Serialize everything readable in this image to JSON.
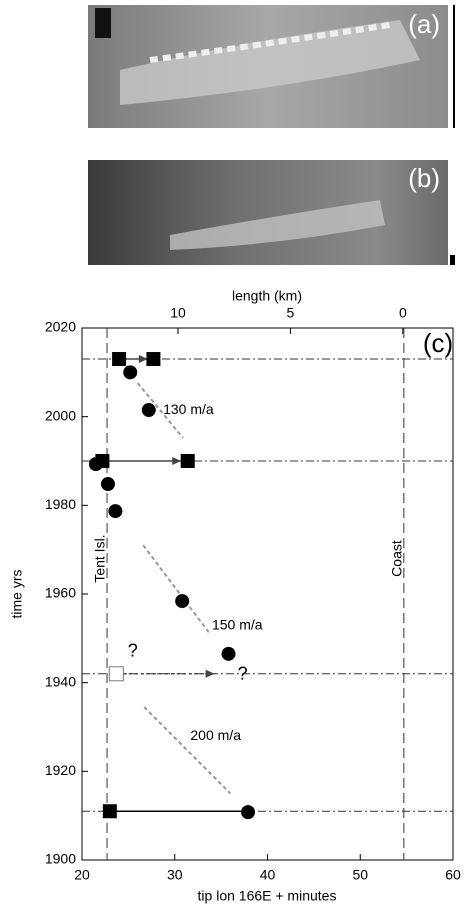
{
  "panels": [
    {
      "label": "(a)"
    },
    {
      "label": "(b)"
    }
  ],
  "chart_data": {
    "type": "scatter",
    "panel_label": "(c)",
    "xlabel": "tip lon 166E + minutes",
    "ylabel": "time yrs",
    "x2label": "length (km)",
    "xlim": [
      20,
      60
    ],
    "ylim": [
      1900,
      2020
    ],
    "x2lim": [
      14.27,
      -2.23
    ],
    "xticks": [
      20,
      30,
      40,
      50,
      60
    ],
    "yticks": [
      1900,
      1920,
      1940,
      1960,
      1980,
      2000,
      2020
    ],
    "x2ticks": [
      10,
      5,
      0
    ],
    "series": [
      {
        "marker": "square",
        "color": "#000000",
        "x": [
          24.0,
          27.7,
          22.2,
          31.4,
          23.0
        ],
        "y": [
          2013,
          2013,
          1990,
          1990,
          1911
        ]
      },
      {
        "marker": "circle",
        "color": "#000000",
        "x": [
          25.2,
          27.2,
          21.5,
          22.8,
          23.6,
          30.8,
          35.8,
          37.9
        ],
        "y": [
          2010,
          2001.5,
          1989.3,
          1984.8,
          1978.7,
          1958.4,
          1946.5,
          1910.8
        ]
      },
      {
        "marker": "hollow-square",
        "color": "#777777",
        "x": [
          23.7
        ],
        "y": [
          1942
        ]
      }
    ],
    "arrows": [
      {
        "style": "solid",
        "color": "#444444",
        "x": [
          24.6,
          27.1
        ],
        "y": [
          2013,
          2013
        ]
      },
      {
        "style": "solid",
        "color": "#444444",
        "x": [
          22.8,
          30.7
        ],
        "y": [
          1990,
          1990
        ]
      },
      {
        "style": "dotted",
        "color": "#444444",
        "x": [
          24.4,
          34.3
        ],
        "y": [
          1942,
          1942
        ]
      },
      {
        "style": "plain",
        "color": "#000000",
        "x": [
          23.6,
          37.3
        ],
        "y": [
          1911,
          1911
        ]
      }
    ],
    "hlines": [
      2013,
      1990,
      1942,
      1911
    ],
    "vlines": [
      {
        "x": 22.7,
        "label": "Tent Isl."
      },
      {
        "x": 54.7,
        "label": "Coast"
      }
    ],
    "trends": [
      {
        "label": "130 m/a",
        "x": [
          26.0,
          30.9
        ],
        "y": [
          2007.6,
          1995.2
        ]
      },
      {
        "label": "150 m/a",
        "x": [
          26.6,
          33.8
        ],
        "y": [
          1971,
          1951
        ]
      },
      {
        "label": "200 m/a",
        "x": [
          26.7,
          36.0
        ],
        "y": [
          1934.5,
          1915
        ]
      }
    ],
    "annotations": [
      {
        "text": "?"
      },
      {
        "text": "?"
      }
    ]
  }
}
